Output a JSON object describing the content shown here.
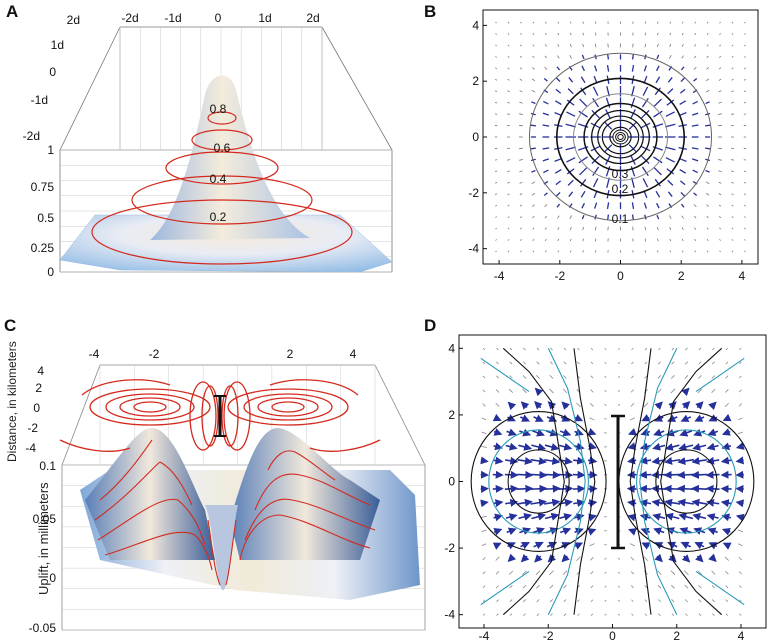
{
  "panels": {
    "a": {
      "letter": "A",
      "back_ticks": [
        "-2d",
        "-1d",
        "0",
        "1d",
        "2d"
      ],
      "side_ticks": [
        "2d",
        "1d",
        "0",
        "-1d",
        "-2d"
      ],
      "z_ticks": [
        "1",
        "0.75",
        "0.5",
        "0.25",
        "0"
      ],
      "contour_labels": [
        "0.8",
        "0.6",
        "0.4",
        "0.2"
      ]
    },
    "b": {
      "letter": "B",
      "x_ticks": [
        "-4",
        "-2",
        "0",
        "2",
        "4"
      ],
      "y_ticks": [
        "4",
        "2",
        "0",
        "-2",
        "-4"
      ],
      "contour_labels": [
        "0.3",
        "0.2",
        "0.1"
      ]
    },
    "c": {
      "letter": "C",
      "x_ticks": [
        "-4",
        "-2",
        "2",
        "4"
      ],
      "y_ticks": [
        "4",
        "2",
        "0",
        "-2",
        "-4"
      ],
      "z_ticks": [
        "0.1",
        "0.05",
        "0",
        "-0.05"
      ],
      "y_label": "Distance, in kilometers",
      "z_label": "Uplift, in millimeters"
    },
    "d": {
      "letter": "D",
      "x_ticks": [
        "-4",
        "-2",
        "0",
        "2",
        "4"
      ],
      "y_ticks": [
        "4",
        "2",
        "0",
        "-2",
        "-4"
      ]
    }
  },
  "colors": {
    "contour_red": "#d42a1e",
    "arrow_blue": "#25309a",
    "teal": "#2a9ab8",
    "surface_light": "#eef0f6",
    "surface_blue": "#8eb6e0"
  }
}
